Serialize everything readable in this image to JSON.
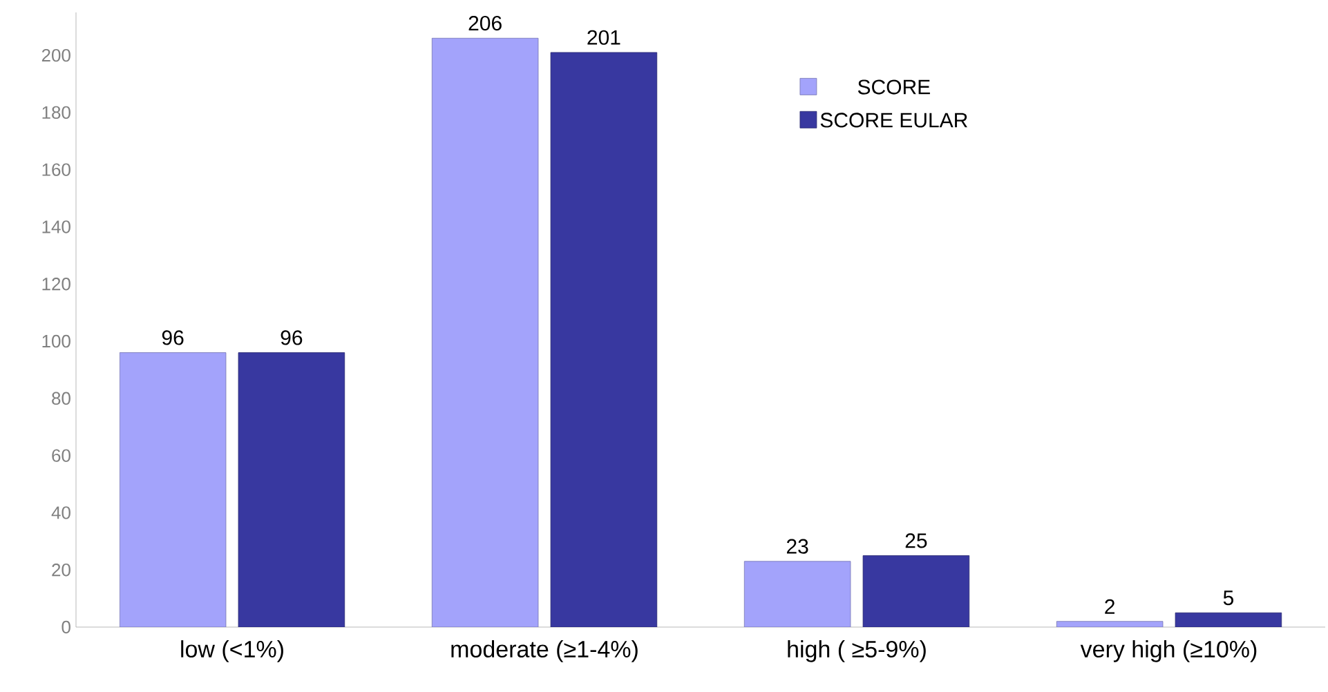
{
  "chart_data": {
    "type": "bar",
    "categories": [
      "low (<1%)",
      "moderate (≥1-4%)",
      "high ( ≥5-9%)",
      "very high (≥10%)"
    ],
    "series": [
      {
        "name": "SCORE",
        "color": "#a3a3fb",
        "values": [
          96,
          206,
          23,
          2
        ]
      },
      {
        "name": "SCORE EULAR",
        "color": "#3838a0",
        "values": [
          96,
          201,
          25,
          5
        ]
      }
    ],
    "ylim": [
      0,
      215
    ],
    "yticks": [
      0,
      20,
      40,
      60,
      80,
      100,
      120,
      140,
      160,
      180,
      200
    ],
    "data_labels": true,
    "legend": "top right",
    "grid": false
  }
}
